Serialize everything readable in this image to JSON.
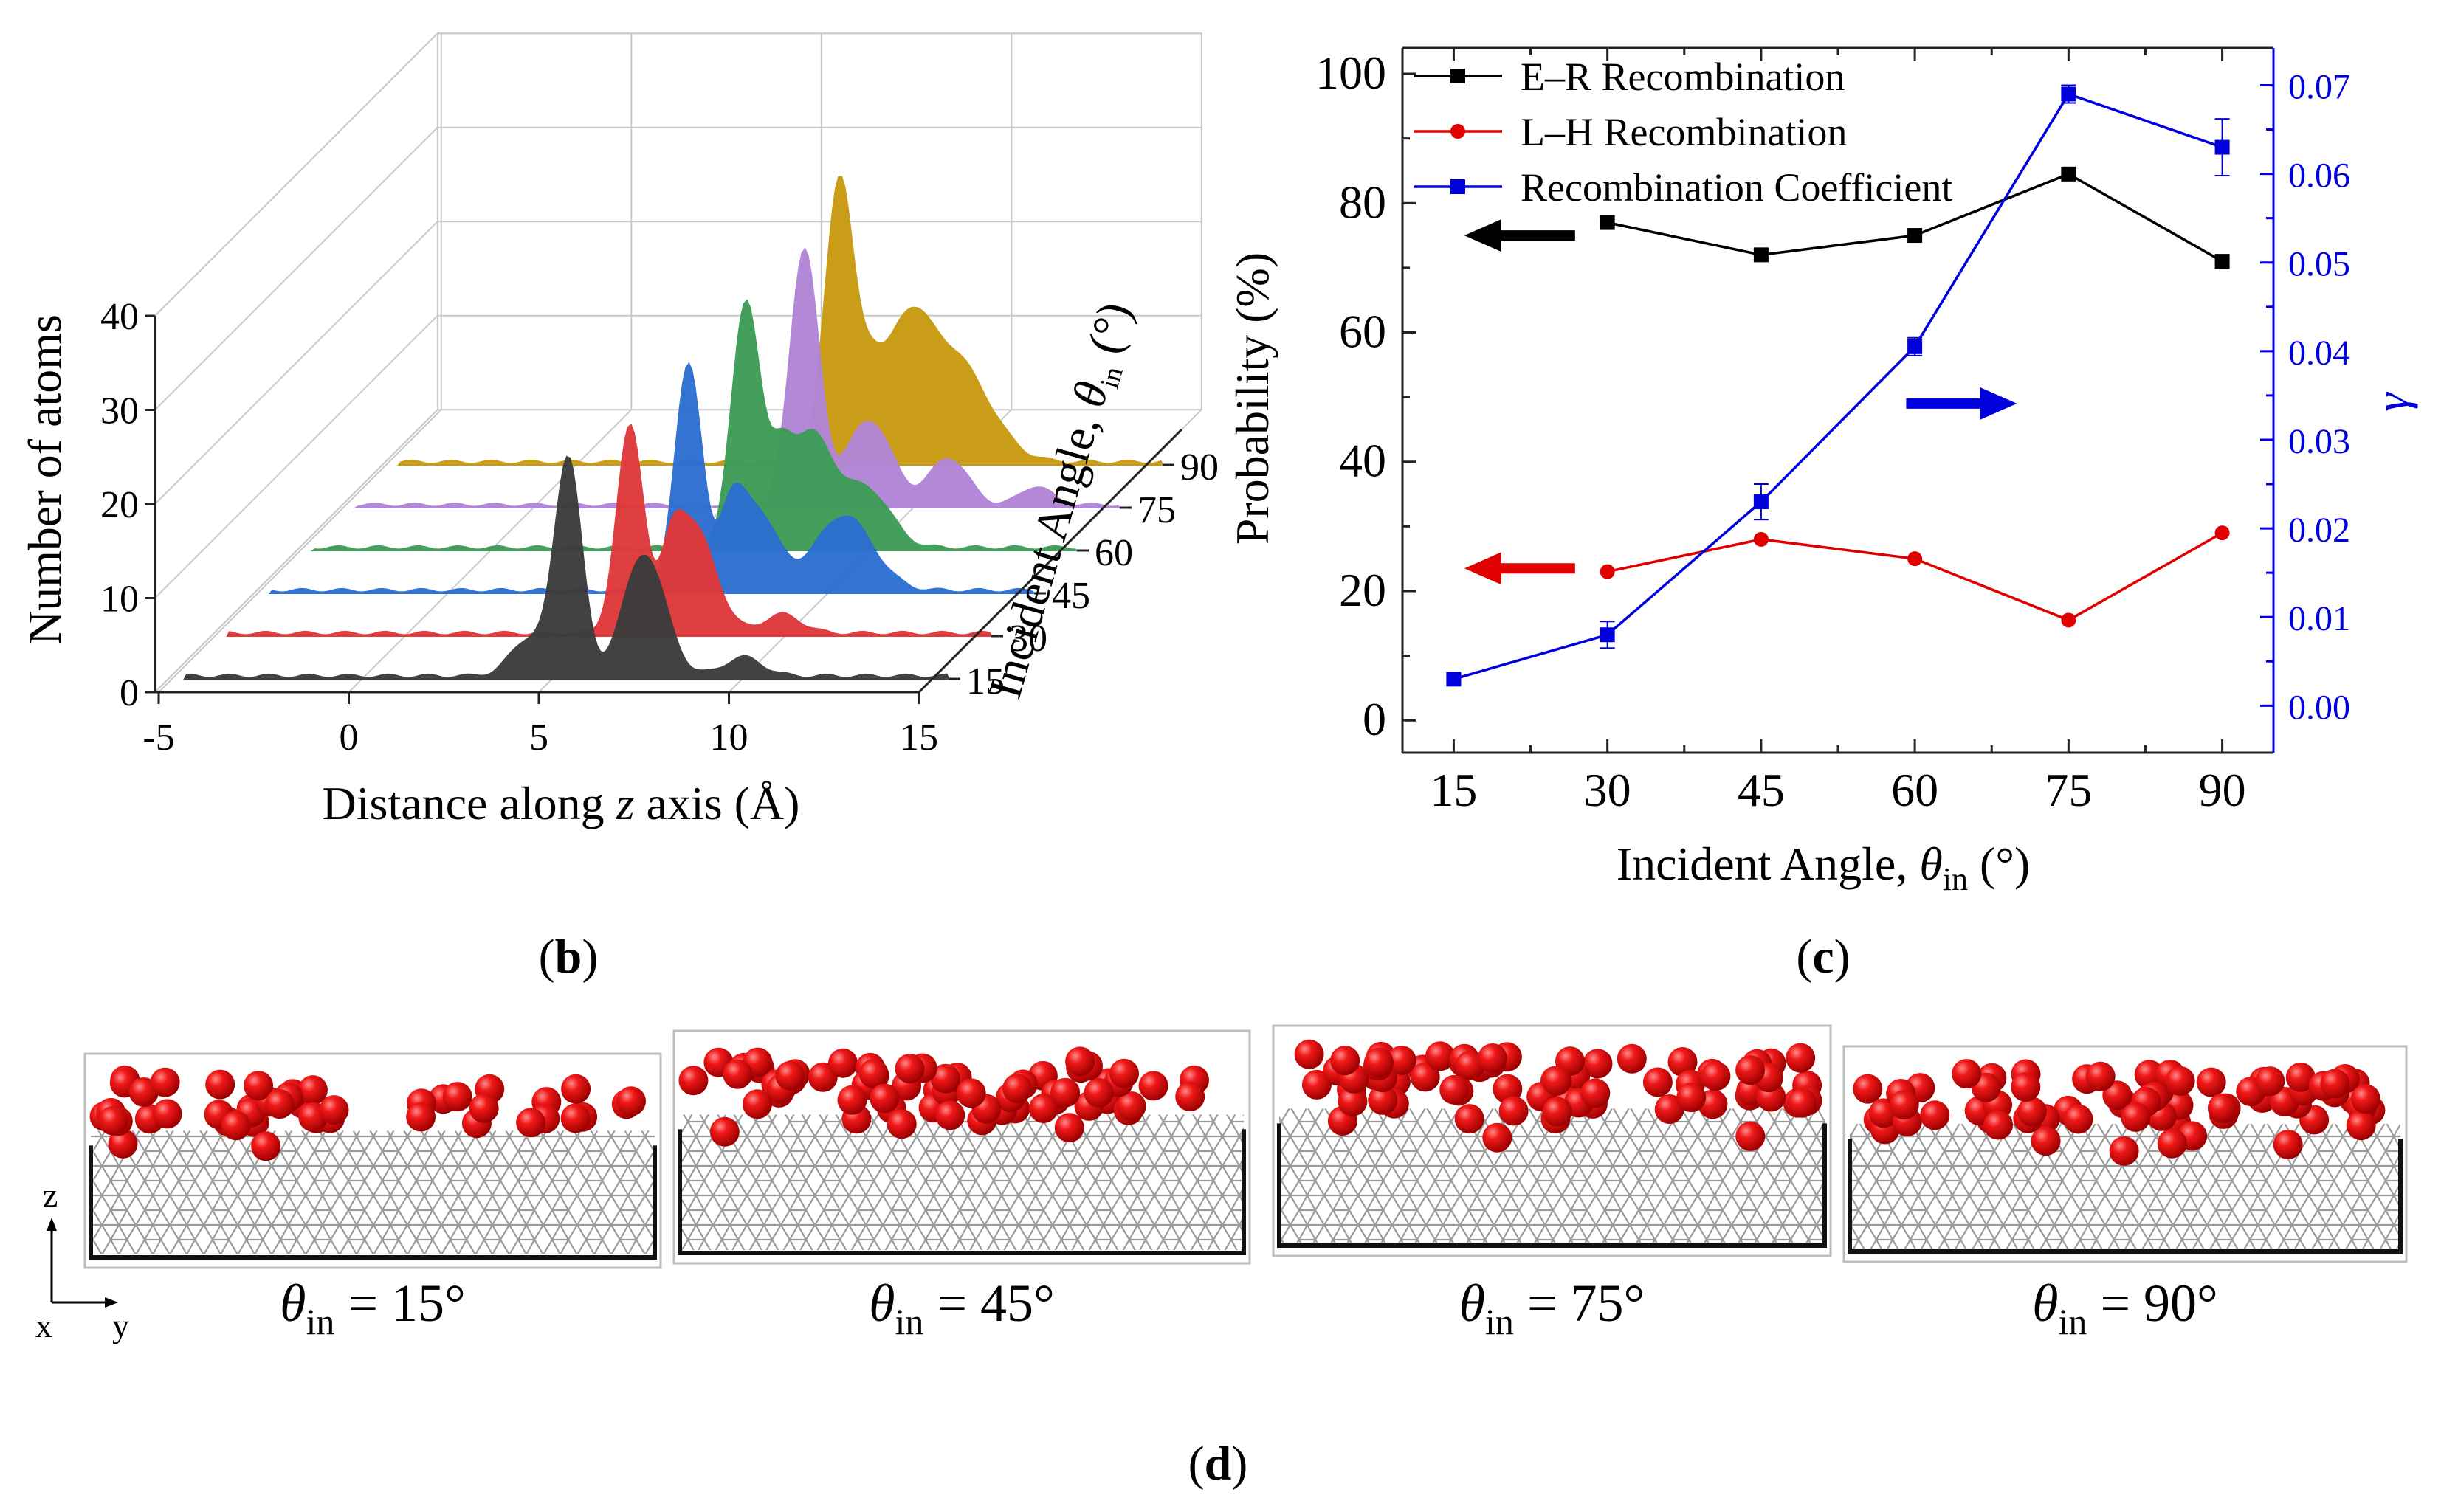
{
  "figure": {
    "panel_b_label": "b",
    "panel_c_label": "c",
    "panel_d_label": "d"
  },
  "chart_data": [
    {
      "id": "b",
      "type": "area",
      "xlabel_pre": "Distance along ",
      "xlabel_var": "z",
      "xlabel_post": " axis (Å)",
      "ylabel": "Number of atoms",
      "zlabel_pre": "Incident Angle, ",
      "zlabel_var": "θ",
      "zlabel_sub": "in",
      "zlabel_post": " (°)",
      "x_ticks": [
        "-5",
        "0",
        "5",
        "10",
        "15"
      ],
      "y_ticks": [
        "0",
        "10",
        "20",
        "30",
        "40"
      ],
      "z_ticks": [
        "15",
        "30",
        "45",
        "60",
        "75",
        "90"
      ],
      "xlim": [
        -6,
        15
      ],
      "ylim": [
        0,
        40
      ],
      "series": [
        {
          "name": "15",
          "color": "#3c3c3c",
          "peaks": [
            {
              "center": 5.0,
              "height": 23,
              "width": 0.35
            },
            {
              "center": 7.0,
              "height": 13,
              "width": 0.55
            },
            {
              "center": 4.0,
              "height": 4,
              "width": 0.5
            },
            {
              "center": 9.6,
              "height": 2,
              "width": 0.5
            }
          ]
        },
        {
          "name": "30",
          "color": "#e0393b",
          "peaks": [
            {
              "center": 5.5,
              "height": 22,
              "width": 0.35
            },
            {
              "center": 7.2,
              "height": 11,
              "width": 0.55
            },
            {
              "center": 6.6,
              "height": 6,
              "width": 0.3
            },
            {
              "center": 9.5,
              "height": 2,
              "width": 0.5
            }
          ]
        },
        {
          "name": "45",
          "color": "#2d6fd0",
          "peaks": [
            {
              "center": 5.9,
              "height": 24,
              "width": 0.35
            },
            {
              "center": 7.6,
              "height": 9,
              "width": 0.6
            },
            {
              "center": 10.0,
              "height": 8,
              "width": 0.75
            },
            {
              "center": 7.0,
              "height": 5,
              "width": 0.3
            }
          ]
        },
        {
          "name": "60",
          "color": "#3e9c57",
          "peaks": [
            {
              "center": 6.3,
              "height": 26,
              "width": 0.38
            },
            {
              "center": 8.0,
              "height": 12,
              "width": 0.6
            },
            {
              "center": 9.5,
              "height": 6,
              "width": 0.6
            },
            {
              "center": 7.2,
              "height": 6,
              "width": 0.3
            }
          ]
        },
        {
          "name": "75",
          "color": "#b185d6",
          "peaks": [
            {
              "center": 6.7,
              "height": 27,
              "width": 0.38
            },
            {
              "center": 8.4,
              "height": 9,
              "width": 0.6
            },
            {
              "center": 10.5,
              "height": 5,
              "width": 0.5
            },
            {
              "center": 12.8,
              "height": 2,
              "width": 0.4
            }
          ]
        },
        {
          "name": "90",
          "color": "#c89a10",
          "peaks": [
            {
              "center": 6.5,
              "height": 30,
              "width": 0.38
            },
            {
              "center": 8.2,
              "height": 12,
              "width": 0.6
            },
            {
              "center": 9.5,
              "height": 11,
              "width": 0.9
            },
            {
              "center": 7.3,
              "height": 6,
              "width": 0.3
            }
          ]
        }
      ],
      "baseline": 4
    },
    {
      "id": "c",
      "type": "line",
      "xlabel_pre": "Incident Angle, ",
      "xlabel_var": "θ",
      "xlabel_sub": "in",
      "xlabel_post": " (°)",
      "ylabel": "Probability (%)",
      "y2label": "γ",
      "x_ticks": [
        "15",
        "30",
        "45",
        "60",
        "75",
        "90"
      ],
      "y_ticks": [
        "0",
        "20",
        "40",
        "60",
        "80",
        "100"
      ],
      "y2_ticks": [
        "0.00",
        "0.01",
        "0.02",
        "0.03",
        "0.04",
        "0.05",
        "0.06",
        "0.07"
      ],
      "xlim": [
        10,
        95
      ],
      "ylim": [
        -5,
        104
      ],
      "y2lim": [
        -0.0053,
        0.0742
      ],
      "legend_position": "top-left",
      "series": [
        {
          "name": "E–R Recombination",
          "color": "#000000",
          "marker": "square",
          "axis": "left",
          "x": [
            30,
            45,
            60,
            75,
            90
          ],
          "y": [
            77,
            72,
            75,
            84.5,
            71
          ]
        },
        {
          "name": "L–H Recombination",
          "color": "#e00000",
          "marker": "circle",
          "axis": "left",
          "x": [
            30,
            45,
            60,
            75,
            90
          ],
          "y": [
            23,
            28,
            25,
            15.5,
            29
          ]
        },
        {
          "name": "Recombination Coefficient",
          "color": "#0000dd",
          "marker": "square",
          "axis": "right",
          "x": [
            15,
            30,
            45,
            60,
            75,
            90
          ],
          "y": [
            0.003,
            0.008,
            0.023,
            0.0405,
            0.069,
            0.063
          ],
          "yerr": [
            0.0005,
            0.0015,
            0.002,
            0.001,
            0.001,
            0.0032
          ]
        }
      ],
      "annotations": [
        {
          "type": "arrow",
          "direction": "left",
          "color": "#000000",
          "x": 20,
          "y": 75
        },
        {
          "type": "arrow",
          "direction": "left",
          "color": "#e00000",
          "x": 20,
          "y": 23.5
        },
        {
          "type": "arrow",
          "direction": "right",
          "color": "#0000dd",
          "x": 66,
          "y": 49
        }
      ]
    }
  ],
  "panel_d": {
    "axis_z": "z",
    "axis_x": "x",
    "axis_y": "y",
    "snapshots": [
      {
        "label_var": "θ",
        "label_sub": "in",
        "label_post": " = 15°",
        "atoms": 46
      },
      {
        "label_var": "θ",
        "label_sub": "in",
        "label_post": " = 45°",
        "atoms": 62
      },
      {
        "label_var": "θ",
        "label_sub": "in",
        "label_post": " = 75°",
        "atoms": 72
      },
      {
        "label_var": "θ",
        "label_sub": "in",
        "label_post": " = 90°",
        "atoms": 68
      }
    ]
  }
}
